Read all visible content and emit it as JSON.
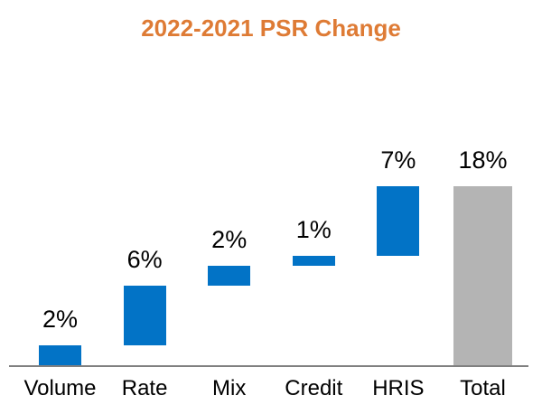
{
  "chart_data": {
    "type": "bar",
    "subtype": "waterfall",
    "title": "2022-2021 PSR Change",
    "title_color": "#DE7B35",
    "categories": [
      "Volume",
      "Rate",
      "Mix",
      "Credit",
      "HRIS",
      "Total"
    ],
    "values": [
      2,
      6,
      2,
      1,
      7,
      18
    ],
    "data_labels": [
      "2%",
      "6%",
      "2%",
      "1%",
      "7%",
      "18%"
    ],
    "cumulative_start": [
      0,
      2,
      8,
      10,
      11,
      0
    ],
    "cumulative_end": [
      2,
      8,
      10,
      11,
      18,
      18
    ],
    "is_total": [
      false,
      false,
      false,
      false,
      false,
      true
    ],
    "colors": {
      "step_bar": "#0273C6",
      "total_bar": "#B4B4B4",
      "axis_line": "#808080",
      "label_text": "#000000"
    },
    "xlabel": "",
    "ylabel": "",
    "ylim": [
      0,
      18
    ],
    "grid": false,
    "legend": false
  }
}
